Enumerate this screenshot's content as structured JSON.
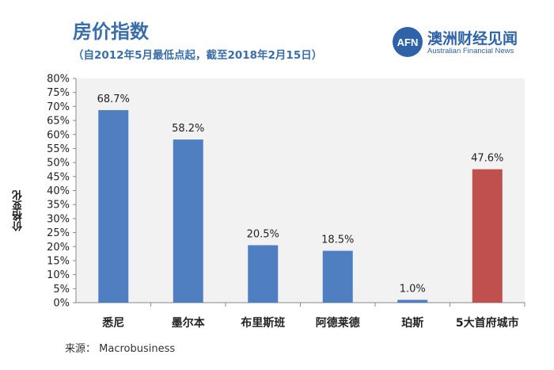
{
  "header": {
    "title": "房价指数",
    "subtitle": "（自2012年5月最低点起，截至2018年2月15日）"
  },
  "logo": {
    "mark": "AFN",
    "name_cn": "澳洲财经见闻",
    "name_en": "Australian Financial News"
  },
  "footer": {
    "source": "来源： Macrobusiness"
  },
  "colors": {
    "title": "#3a6ea8",
    "bar_blue": "#4f7fc1",
    "bar_red": "#c0504d",
    "plot_bg": "#f2f2f2"
  },
  "chart_data": {
    "type": "bar",
    "ylabel": "价格变化",
    "ylim": [
      0,
      80
    ],
    "ytick_step": 5,
    "ytick_format": "percent",
    "categories": [
      "悉尼",
      "墨尔本",
      "布里斯班",
      "阿德莱德",
      "珀斯",
      "5大首府城市"
    ],
    "values": [
      68.7,
      58.2,
      20.5,
      18.5,
      1.0,
      47.6
    ],
    "value_labels": [
      "68.7%",
      "58.2%",
      "20.5%",
      "18.5%",
      "1.0%",
      "47.6%"
    ],
    "bar_colors": [
      "#4f7fc1",
      "#4f7fc1",
      "#4f7fc1",
      "#4f7fc1",
      "#4f7fc1",
      "#c0504d"
    ],
    "grid": false
  }
}
